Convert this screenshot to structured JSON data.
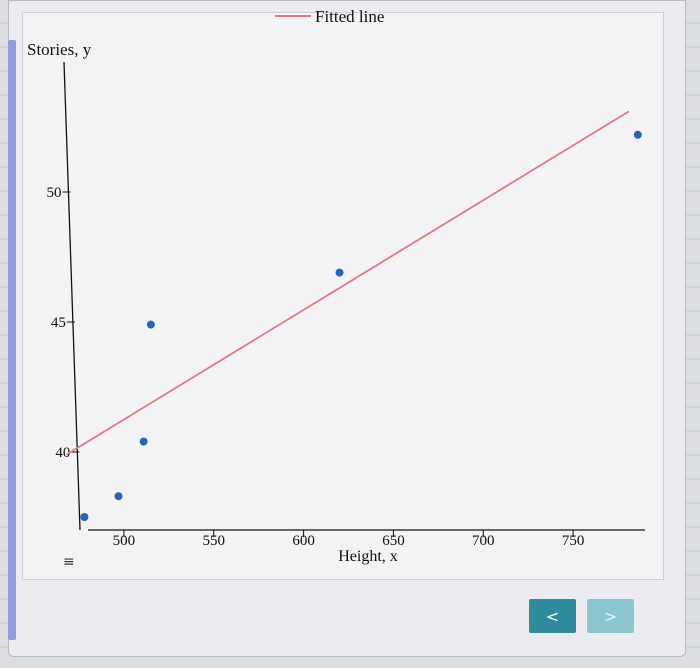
{
  "chart_data": {
    "type": "scatter",
    "ylabel": "Stories, y",
    "xlabel": "Height, x",
    "xlim": [
      470,
      790
    ],
    "ylim": [
      37,
      55
    ],
    "xticks": [
      500,
      550,
      600,
      650,
      700,
      750
    ],
    "yticks": [
      40,
      45,
      50
    ],
    "points": [
      {
        "x": 478,
        "y": 37.5
      },
      {
        "x": 497,
        "y": 38.3
      },
      {
        "x": 511,
        "y": 40.4
      },
      {
        "x": 515,
        "y": 44.9
      },
      {
        "x": 620,
        "y": 46.9
      },
      {
        "x": 786,
        "y": 52.2
      }
    ],
    "fitted_line": {
      "name": "Fitted line",
      "x": [
        468,
        781
      ],
      "y": [
        39.9,
        53.1
      ]
    },
    "legend_position": "top-center",
    "colors": {
      "points": "#2a62b5",
      "line": "#e07a82"
    }
  },
  "nav": {
    "prev_label": "<",
    "next_label": ">"
  },
  "icons": {
    "menu": "≡"
  }
}
